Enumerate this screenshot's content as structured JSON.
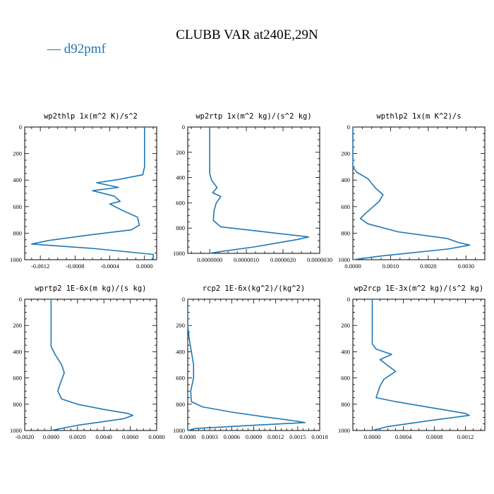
{
  "colors": {
    "line": "#1f77b4",
    "axis": "#000000"
  },
  "chart_data": {
    "type": "line",
    "title": "CLUBB VAR at240E,29N",
    "legend": {
      "label": "— d92pmf",
      "position": "top-left"
    },
    "yaxis": {
      "range": [
        1000,
        0
      ],
      "ticks": [
        "0",
        "200",
        "400",
        "600",
        "800",
        "1000"
      ],
      "reversed": true
    },
    "panels": [
      {
        "title": "wp2thlp   1x(m^2 K)/s^2",
        "xrange": [
          -0.00138,
          0.00014
        ],
        "xticks": [
          -0.0012,
          -0.0008,
          -0.0004,
          0.0
        ],
        "xtick_labels": [
          "-0.0012",
          "-0.0008",
          "-0.0004",
          "0.0000"
        ],
        "points": [
          [
            0.0,
            0
          ],
          [
            0.0,
            200
          ],
          [
            0.0,
            300
          ],
          [
            -2e-05,
            360
          ],
          [
            -0.0003,
            395
          ],
          [
            -0.00055,
            420
          ],
          [
            -0.0003,
            455
          ],
          [
            -0.0006,
            480
          ],
          [
            -0.00035,
            520
          ],
          [
            -0.00028,
            560
          ],
          [
            -0.0004,
            580
          ],
          [
            -0.00025,
            630
          ],
          [
            -8e-05,
            680
          ],
          [
            -6e-05,
            740
          ],
          [
            -0.00015,
            775
          ],
          [
            -0.00065,
            815
          ],
          [
            -0.0011,
            855
          ],
          [
            -0.0013,
            882
          ],
          [
            -0.0006,
            915
          ],
          [
            0.0001,
            960
          ],
          [
            0.0001,
            985
          ],
          [
            8e-05,
            1000
          ]
        ]
      },
      {
        "title": "wp2rtp   1x(m^2 kg)/(s^2 kg)",
        "xrange": [
          -6e-07,
          3e-06
        ],
        "xticks": [
          0.0,
          1e-06,
          2e-06,
          3e-06
        ],
        "xtick_labels": [
          "0.0000000",
          "0.0000010",
          "0.0000020",
          "0.0000030"
        ],
        "points": [
          [
            0.0,
            0
          ],
          [
            0.0,
            200
          ],
          [
            0.0,
            370
          ],
          [
            5e-08,
            420
          ],
          [
            2e-07,
            480
          ],
          [
            8e-08,
            520
          ],
          [
            3e-07,
            550
          ],
          [
            1.8e-07,
            600
          ],
          [
            1.2e-07,
            660
          ],
          [
            1e-07,
            720
          ],
          [
            1e-07,
            740
          ],
          [
            3e-07,
            790
          ],
          [
            1.5e-06,
            830
          ],
          [
            2.7e-06,
            870
          ],
          [
            2.4e-06,
            890
          ],
          [
            1.2e-06,
            950
          ],
          [
            2e-07,
            990
          ],
          [
            0.0,
            1000
          ]
        ]
      },
      {
        "title": "wpthlp2   1x(m K^2)/s",
        "xrange": [
          0.0,
          0.0035
        ],
        "xticks": [
          0.0,
          0.001,
          0.002,
          0.003
        ],
        "xtick_labels": [
          "0.0000",
          "0.0010",
          "0.0020",
          "0.0030"
        ],
        "points": [
          [
            0.0,
            0
          ],
          [
            0.0,
            300
          ],
          [
            0.0001,
            340
          ],
          [
            0.0004,
            390
          ],
          [
            0.0006,
            460
          ],
          [
            0.0008,
            510
          ],
          [
            0.0007,
            560
          ],
          [
            0.0005,
            610
          ],
          [
            0.0003,
            660
          ],
          [
            0.0002,
            690
          ],
          [
            0.0004,
            730
          ],
          [
            0.0012,
            790
          ],
          [
            0.0025,
            840
          ],
          [
            0.0028,
            870
          ],
          [
            0.0031,
            890
          ],
          [
            0.0025,
            920
          ],
          [
            0.0008,
            970
          ],
          [
            0.0,
            1000
          ]
        ]
      },
      {
        "title": "wprtp2   1E-6x(m kg)/(s kg)",
        "xrange": [
          -0.002,
          0.008
        ],
        "xticks": [
          -0.002,
          0.0,
          0.002,
          0.004,
          0.006,
          0.008
        ],
        "xtick_labels": [
          "-0.0020",
          "0.0000",
          "0.0020",
          "0.0040",
          "0.0060",
          "0.0080"
        ],
        "points": [
          [
            0.0,
            0
          ],
          [
            0.0,
            200
          ],
          [
            0.0,
            360
          ],
          [
            0.0003,
            420
          ],
          [
            0.0008,
            500
          ],
          [
            0.001,
            560
          ],
          [
            0.0007,
            640
          ],
          [
            0.0005,
            700
          ],
          [
            0.0008,
            760
          ],
          [
            0.002,
            800
          ],
          [
            0.004,
            840
          ],
          [
            0.0058,
            870
          ],
          [
            0.0062,
            885
          ],
          [
            0.0055,
            910
          ],
          [
            0.002,
            960
          ],
          [
            0.0,
            1000
          ]
        ]
      },
      {
        "title": "rcp2   1E-6x(kg^2)/(kg^2)",
        "xrange": [
          0.0,
          0.0018
        ],
        "xticks": [
          0.0,
          0.0003,
          0.0006,
          0.0009,
          0.0012,
          0.0015,
          0.0018
        ],
        "xtick_labels": [
          "0.0000",
          "0.0003",
          "0.0006",
          "0.0009",
          "0.0012",
          "0.0015",
          "0.0018"
        ],
        "points": [
          [
            0.0,
            0
          ],
          [
            0.0,
            200
          ],
          [
            2e-05,
            300
          ],
          [
            5e-05,
            400
          ],
          [
            8e-05,
            500
          ],
          [
            8e-05,
            600
          ],
          [
            4e-05,
            700
          ],
          [
            5e-05,
            780
          ],
          [
            0.0002,
            820
          ],
          [
            0.0006,
            860
          ],
          [
            0.0011,
            900
          ],
          [
            0.0015,
            930
          ],
          [
            0.0016,
            940
          ],
          [
            0.0009,
            960
          ],
          [
            0.0001,
            985
          ],
          [
            0.0,
            1000
          ]
        ]
      },
      {
        "title": "wp2rcp   1E-3x(m^2 kg)/(s^2 kg)",
        "xrange": [
          -0.00025,
          0.00145
        ],
        "xticks": [
          0.0,
          0.0004,
          0.0008,
          0.0012
        ],
        "xtick_labels": [
          "0.0000",
          "0.0004",
          "0.0008",
          "0.0012"
        ],
        "points": [
          [
            0.0,
            0
          ],
          [
            0.0,
            200
          ],
          [
            0.0,
            340
          ],
          [
            5e-05,
            380
          ],
          [
            0.00025,
            420
          ],
          [
            0.0001,
            460
          ],
          [
            0.0003,
            550
          ],
          [
            0.00015,
            610
          ],
          [
            0.0001,
            660
          ],
          [
            5e-05,
            750
          ],
          [
            0.0003,
            780
          ],
          [
            0.0008,
            830
          ],
          [
            0.0012,
            870
          ],
          [
            0.00125,
            885
          ],
          [
            0.0008,
            920
          ],
          [
            0.0002,
            970
          ],
          [
            0.0,
            1000
          ]
        ]
      }
    ]
  }
}
